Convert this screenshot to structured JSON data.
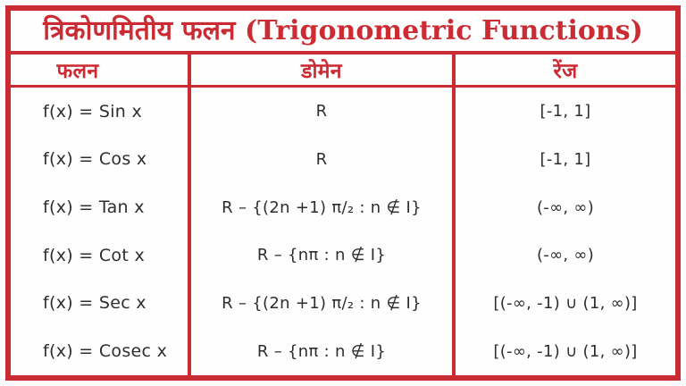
{
  "colors": {
    "red": "#cb2b33",
    "text": "#2e2e2e",
    "bg": "#fefefe"
  },
  "title": "त्रिकोणमितीय फलन (Trigonometric Functions)",
  "table": {
    "headers": [
      "फलन",
      "डोमेन",
      "रेंज"
    ],
    "rows": [
      {
        "function": "f(x) = Sin x",
        "domain": "R",
        "range": "[-1, 1]"
      },
      {
        "function": "f(x) = Cos x",
        "domain": "R",
        "range": "[-1, 1]"
      },
      {
        "function": "f(x) = Tan x",
        "domain": "R – {(2n +1) π/₂ : n ∉ I}",
        "range": "(-∞, ∞)"
      },
      {
        "function": "f(x) = Cot x",
        "domain": "R – {nπ : n ∉ I}",
        "range": "(-∞, ∞)"
      },
      {
        "function": "f(x) = Sec x",
        "domain": "R – {(2n +1) π/₂ : n ∉ I}",
        "range": "[(-∞, -1) ∪ (1, ∞)]"
      },
      {
        "function": "f(x) = Cosec x",
        "domain": "R – {nπ : n ∉ I}",
        "range": "[(-∞, -1) ∪ (1, ∞)]"
      }
    ]
  }
}
